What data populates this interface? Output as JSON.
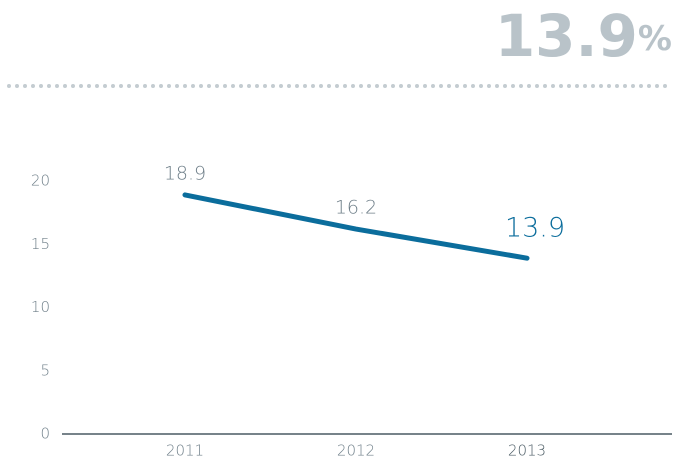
{
  "chart_data": {
    "type": "line",
    "headline": {
      "value": "13.9",
      "unit": "%"
    },
    "categories": [
      "2011",
      "2012",
      "2013"
    ],
    "values": [
      18.9,
      16.2,
      13.9
    ],
    "color": "#0b6d9c",
    "ylim": [
      0,
      20
    ],
    "yticks": [
      0,
      5,
      10,
      15,
      20
    ],
    "grid": false
  }
}
